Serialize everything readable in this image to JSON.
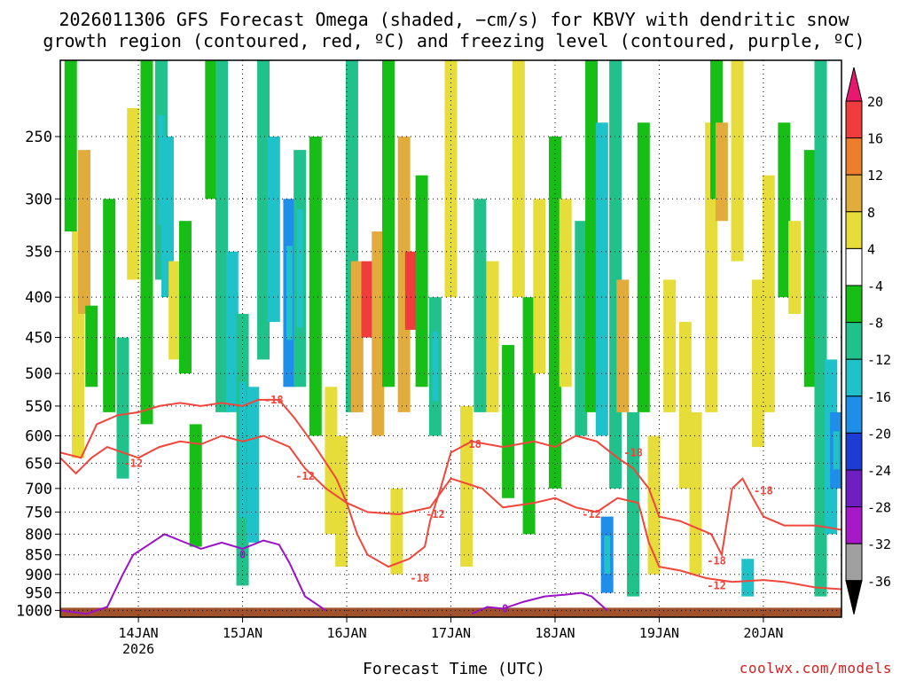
{
  "title": {
    "line1": "2026011306 GFS Forecast Omega (shaded, −cm/s) for KBVY with dendritic snow",
    "line2": "growth region (contoured, red, ºC) and freezing level (contoured, purple, ºC)"
  },
  "credit": "coolwx.com/models",
  "chart_data": {
    "type": "heatmap",
    "title": "2026011306 GFS Forecast Omega (shaded, −cm/s) for KBVY with dendritic snow growth region (contoured, red, ºC) and freezing level (contoured, purple, ºC)",
    "xlabel": "Forecast Time (UTC)",
    "ylabel": "",
    "x_ticks": [
      {
        "day": 14,
        "label": "14JAN",
        "sublabel": "2026"
      },
      {
        "day": 15,
        "label": "15JAN"
      },
      {
        "day": 16,
        "label": "16JAN"
      },
      {
        "day": 17,
        "label": "17JAN"
      },
      {
        "day": 18,
        "label": "18JAN"
      },
      {
        "day": 19,
        "label": "19JAN"
      },
      {
        "day": 20,
        "label": "20JAN"
      }
    ],
    "xlim_days": [
      13.25,
      20.75
    ],
    "y_ticks": [
      250,
      300,
      350,
      400,
      450,
      500,
      550,
      600,
      650,
      700,
      750,
      800,
      850,
      900,
      950,
      1000
    ],
    "ylim_hpa": [
      1020,
      200
    ],
    "y_scale": "log",
    "grid": "dotted",
    "colorbar": {
      "labels": [
        "20",
        "16",
        "12",
        "8",
        "4",
        "-4",
        "-8",
        "-12",
        "-16",
        "-20",
        "-24",
        "-28",
        "-32",
        "-36"
      ],
      "colors": [
        "#e8186f",
        "#f03c3c",
        "#ec7e2c",
        "#e2ac3c",
        "#e6dc3a",
        "#ffffff",
        "#16be16",
        "#20c18a",
        "#1ec2c8",
        "#1e8ee8",
        "#1e3cd4",
        "#6f1fc1",
        "#a718c8",
        "#a0a0a0",
        "#000000"
      ]
    },
    "omega_cells": [
      {
        "t": 13.35,
        "p1": 200,
        "p2": 330,
        "v": -6
      },
      {
        "t": 13.42,
        "p1": 330,
        "p2": 640,
        "v": 6
      },
      {
        "t": 13.48,
        "p1": 260,
        "p2": 420,
        "v": 11
      },
      {
        "t": 13.55,
        "p1": 410,
        "p2": 520,
        "v": -6
      },
      {
        "t": 13.72,
        "p1": 300,
        "p2": 560,
        "v": -6
      },
      {
        "t": 13.85,
        "p1": 450,
        "p2": 680,
        "v": -8
      },
      {
        "t": 13.95,
        "p1": 230,
        "p2": 380,
        "v": 5
      },
      {
        "t": 14.08,
        "p1": 200,
        "p2": 580,
        "v": -6
      },
      {
        "t": 14.22,
        "p1": 200,
        "p2": 380,
        "v": -10
      },
      {
        "t": 14.28,
        "p1": 250,
        "p2": 400,
        "v": -13
      },
      {
        "t": 14.35,
        "p1": 360,
        "p2": 480,
        "v": 5
      },
      {
        "t": 14.45,
        "p1": 320,
        "p2": 500,
        "v": -6
      },
      {
        "t": 14.55,
        "p1": 580,
        "p2": 830,
        "v": -6
      },
      {
        "t": 14.7,
        "p1": 200,
        "p2": 300,
        "v": -6
      },
      {
        "t": 14.8,
        "p1": 200,
        "p2": 560,
        "v": -8
      },
      {
        "t": 14.9,
        "p1": 350,
        "p2": 560,
        "v": -13
      },
      {
        "t": 15.0,
        "p1": 420,
        "p2": 930,
        "v": -10
      },
      {
        "t": 15.1,
        "p1": 520,
        "p2": 820,
        "v": -13
      },
      {
        "t": 15.2,
        "p1": 200,
        "p2": 480,
        "v": -8
      },
      {
        "t": 15.3,
        "p1": 250,
        "p2": 430,
        "v": -13
      },
      {
        "t": 15.45,
        "p1": 300,
        "p2": 520,
        "v": -17
      },
      {
        "t": 15.55,
        "p1": 260,
        "p2": 520,
        "v": -10
      },
      {
        "t": 15.7,
        "p1": 250,
        "p2": 600,
        "v": -6
      },
      {
        "t": 15.85,
        "p1": 520,
        "p2": 800,
        "v": 5
      },
      {
        "t": 15.95,
        "p1": 600,
        "p2": 880,
        "v": 6
      },
      {
        "t": 16.05,
        "p1": 200,
        "p2": 560,
        "v": -8
      },
      {
        "t": 16.1,
        "p1": 360,
        "p2": 560,
        "v": 10
      },
      {
        "t": 16.2,
        "p1": 360,
        "p2": 450,
        "v": 18
      },
      {
        "t": 16.3,
        "p1": 330,
        "p2": 600,
        "v": 11
      },
      {
        "t": 16.4,
        "p1": 200,
        "p2": 520,
        "v": -6
      },
      {
        "t": 16.48,
        "p1": 700,
        "p2": 900,
        "v": 5
      },
      {
        "t": 16.55,
        "p1": 250,
        "p2": 560,
        "v": 8
      },
      {
        "t": 16.62,
        "p1": 350,
        "p2": 440,
        "v": 18
      },
      {
        "t": 16.72,
        "p1": 280,
        "p2": 520,
        "v": -6
      },
      {
        "t": 16.85,
        "p1": 400,
        "p2": 600,
        "v": -10
      },
      {
        "t": 17.0,
        "p1": 200,
        "p2": 400,
        "v": 5
      },
      {
        "t": 17.15,
        "p1": 550,
        "p2": 880,
        "v": 5
      },
      {
        "t": 17.28,
        "p1": 300,
        "p2": 560,
        "v": -8
      },
      {
        "t": 17.4,
        "p1": 360,
        "p2": 560,
        "v": 5
      },
      {
        "t": 17.55,
        "p1": 460,
        "p2": 720,
        "v": -6
      },
      {
        "t": 17.65,
        "p1": 200,
        "p2": 400,
        "v": 6
      },
      {
        "t": 17.75,
        "p1": 400,
        "p2": 800,
        "v": -6
      },
      {
        "t": 17.85,
        "p1": 300,
        "p2": 500,
        "v": 5
      },
      {
        "t": 18.0,
        "p1": 250,
        "p2": 700,
        "v": -6
      },
      {
        "t": 18.1,
        "p1": 300,
        "p2": 520,
        "v": 5
      },
      {
        "t": 18.25,
        "p1": 320,
        "p2": 600,
        "v": -8
      },
      {
        "t": 18.35,
        "p1": 200,
        "p2": 560,
        "v": -6
      },
      {
        "t": 18.45,
        "p1": 240,
        "p2": 600,
        "v": -13
      },
      {
        "t": 18.5,
        "p1": 760,
        "p2": 950,
        "v": -17
      },
      {
        "t": 18.58,
        "p1": 200,
        "p2": 700,
        "v": -8
      },
      {
        "t": 18.65,
        "p1": 380,
        "p2": 560,
        "v": 9
      },
      {
        "t": 18.75,
        "p1": 560,
        "p2": 960,
        "v": -8
      },
      {
        "t": 18.85,
        "p1": 240,
        "p2": 560,
        "v": -6
      },
      {
        "t": 18.95,
        "p1": 600,
        "p2": 900,
        "v": 5
      },
      {
        "t": 19.1,
        "p1": 380,
        "p2": 560,
        "v": 5
      },
      {
        "t": 19.25,
        "p1": 430,
        "p2": 700,
        "v": 5
      },
      {
        "t": 19.35,
        "p1": 560,
        "p2": 900,
        "v": 6
      },
      {
        "t": 19.5,
        "p1": 240,
        "p2": 560,
        "v": 5
      },
      {
        "t": 19.55,
        "p1": 200,
        "p2": 300,
        "v": -6
      },
      {
        "t": 19.6,
        "p1": 240,
        "p2": 320,
        "v": 11
      },
      {
        "t": 19.75,
        "p1": 200,
        "p2": 360,
        "v": 5
      },
      {
        "t": 19.85,
        "p1": 860,
        "p2": 960,
        "v": -13
      },
      {
        "t": 19.95,
        "p1": 380,
        "p2": 620,
        "v": 5
      },
      {
        "t": 20.05,
        "p1": 280,
        "p2": 560,
        "v": 5
      },
      {
        "t": 20.2,
        "p1": 240,
        "p2": 400,
        "v": -6
      },
      {
        "t": 20.3,
        "p1": 320,
        "p2": 420,
        "v": 5
      },
      {
        "t": 20.45,
        "p1": 260,
        "p2": 520,
        "v": -6
      },
      {
        "t": 20.55,
        "p1": 200,
        "p2": 960,
        "v": -8
      },
      {
        "t": 20.65,
        "p1": 480,
        "p2": 800,
        "v": -13
      },
      {
        "t": 20.7,
        "p1": 560,
        "p2": 700,
        "v": -17
      }
    ],
    "contours": {
      "minus12": {
        "label": "-12",
        "color": "#f0463c",
        "points": [
          [
            13.25,
            640
          ],
          [
            13.4,
            670
          ],
          [
            13.55,
            640
          ],
          [
            13.7,
            620
          ],
          [
            13.85,
            630
          ],
          [
            14.0,
            640
          ],
          [
            14.2,
            620
          ],
          [
            14.4,
            610
          ],
          [
            14.6,
            615
          ],
          [
            14.8,
            600
          ],
          [
            15.0,
            610
          ],
          [
            15.2,
            600
          ],
          [
            15.45,
            620
          ],
          [
            15.6,
            660
          ],
          [
            15.8,
            700
          ],
          [
            16.0,
            730
          ],
          [
            16.2,
            750
          ],
          [
            16.5,
            755
          ],
          [
            16.8,
            740
          ],
          [
            17.0,
            680
          ],
          [
            17.3,
            700
          ],
          [
            17.5,
            740
          ],
          [
            17.8,
            730
          ],
          [
            18.0,
            720
          ],
          [
            18.2,
            740
          ],
          [
            18.4,
            750
          ],
          [
            18.6,
            720
          ],
          [
            18.8,
            730
          ],
          [
            18.9,
            820
          ],
          [
            19.0,
            880
          ],
          [
            19.2,
            890
          ],
          [
            19.45,
            910
          ],
          [
            19.7,
            920
          ],
          [
            20.0,
            915
          ],
          [
            20.2,
            920
          ],
          [
            20.5,
            935
          ],
          [
            20.75,
            940
          ]
        ],
        "labels": [
          [
            13.95,
            650
          ],
          [
            15.6,
            675
          ],
          [
            16.85,
            755
          ],
          [
            18.35,
            755
          ],
          [
            19.55,
            930
          ]
        ]
      },
      "minus18": {
        "label": "-18",
        "color": "#f0463c",
        "points": [
          [
            13.25,
            630
          ],
          [
            13.45,
            640
          ],
          [
            13.6,
            580
          ],
          [
            13.8,
            565
          ],
          [
            14.0,
            560
          ],
          [
            14.2,
            550
          ],
          [
            14.4,
            545
          ],
          [
            14.6,
            550
          ],
          [
            14.8,
            545
          ],
          [
            15.0,
            550
          ],
          [
            15.15,
            540
          ],
          [
            15.35,
            540
          ],
          [
            15.5,
            570
          ],
          [
            15.7,
            620
          ],
          [
            15.9,
            680
          ],
          [
            16.0,
            730
          ],
          [
            16.1,
            800
          ],
          [
            16.2,
            850
          ],
          [
            16.4,
            880
          ],
          [
            16.6,
            860
          ],
          [
            16.75,
            830
          ],
          [
            16.8,
            770
          ],
          [
            16.9,
            700
          ],
          [
            17.0,
            630
          ],
          [
            17.2,
            610
          ],
          [
            17.5,
            620
          ],
          [
            17.8,
            610
          ],
          [
            18.0,
            620
          ],
          [
            18.2,
            600
          ],
          [
            18.4,
            610
          ],
          [
            18.6,
            640
          ],
          [
            18.75,
            660
          ],
          [
            18.9,
            700
          ],
          [
            19.0,
            760
          ],
          [
            19.2,
            770
          ],
          [
            19.5,
            800
          ],
          [
            19.6,
            850
          ],
          [
            19.7,
            700
          ],
          [
            19.8,
            680
          ],
          [
            19.9,
            720
          ],
          [
            20.0,
            760
          ],
          [
            20.2,
            780
          ],
          [
            20.5,
            780
          ],
          [
            20.75,
            790
          ]
        ],
        "labels": [
          [
            15.3,
            540
          ],
          [
            17.2,
            615
          ],
          [
            16.7,
            910
          ],
          [
            18.75,
            630
          ],
          [
            19.55,
            865
          ],
          [
            20.0,
            705
          ]
        ]
      },
      "zero": {
        "label": "0",
        "color": "#9a12c8",
        "points": [
          [
            13.25,
            1000
          ],
          [
            13.5,
            1010
          ],
          [
            13.7,
            990
          ],
          [
            13.85,
            900
          ],
          [
            13.95,
            850
          ],
          [
            14.1,
            825
          ],
          [
            14.25,
            800
          ],
          [
            14.4,
            815
          ],
          [
            14.6,
            835
          ],
          [
            14.8,
            820
          ],
          [
            15.0,
            835
          ],
          [
            15.2,
            815
          ],
          [
            15.35,
            825
          ],
          [
            15.45,
            870
          ],
          [
            15.6,
            960
          ],
          [
            15.8,
            1000
          ]
        ],
        "points2": [
          [
            17.2,
            1010
          ],
          [
            17.35,
            990
          ],
          [
            17.5,
            995
          ],
          [
            17.7,
            975
          ],
          [
            17.9,
            960
          ],
          [
            18.1,
            955
          ],
          [
            18.25,
            950
          ],
          [
            18.35,
            960
          ],
          [
            18.5,
            1000
          ]
        ],
        "labels": [
          [
            15.0,
            850
          ],
          [
            17.52,
            995
          ]
        ]
      }
    },
    "terrain_hpa": 1000
  },
  "axis": {
    "xlabel": "Forecast Time (UTC)"
  }
}
